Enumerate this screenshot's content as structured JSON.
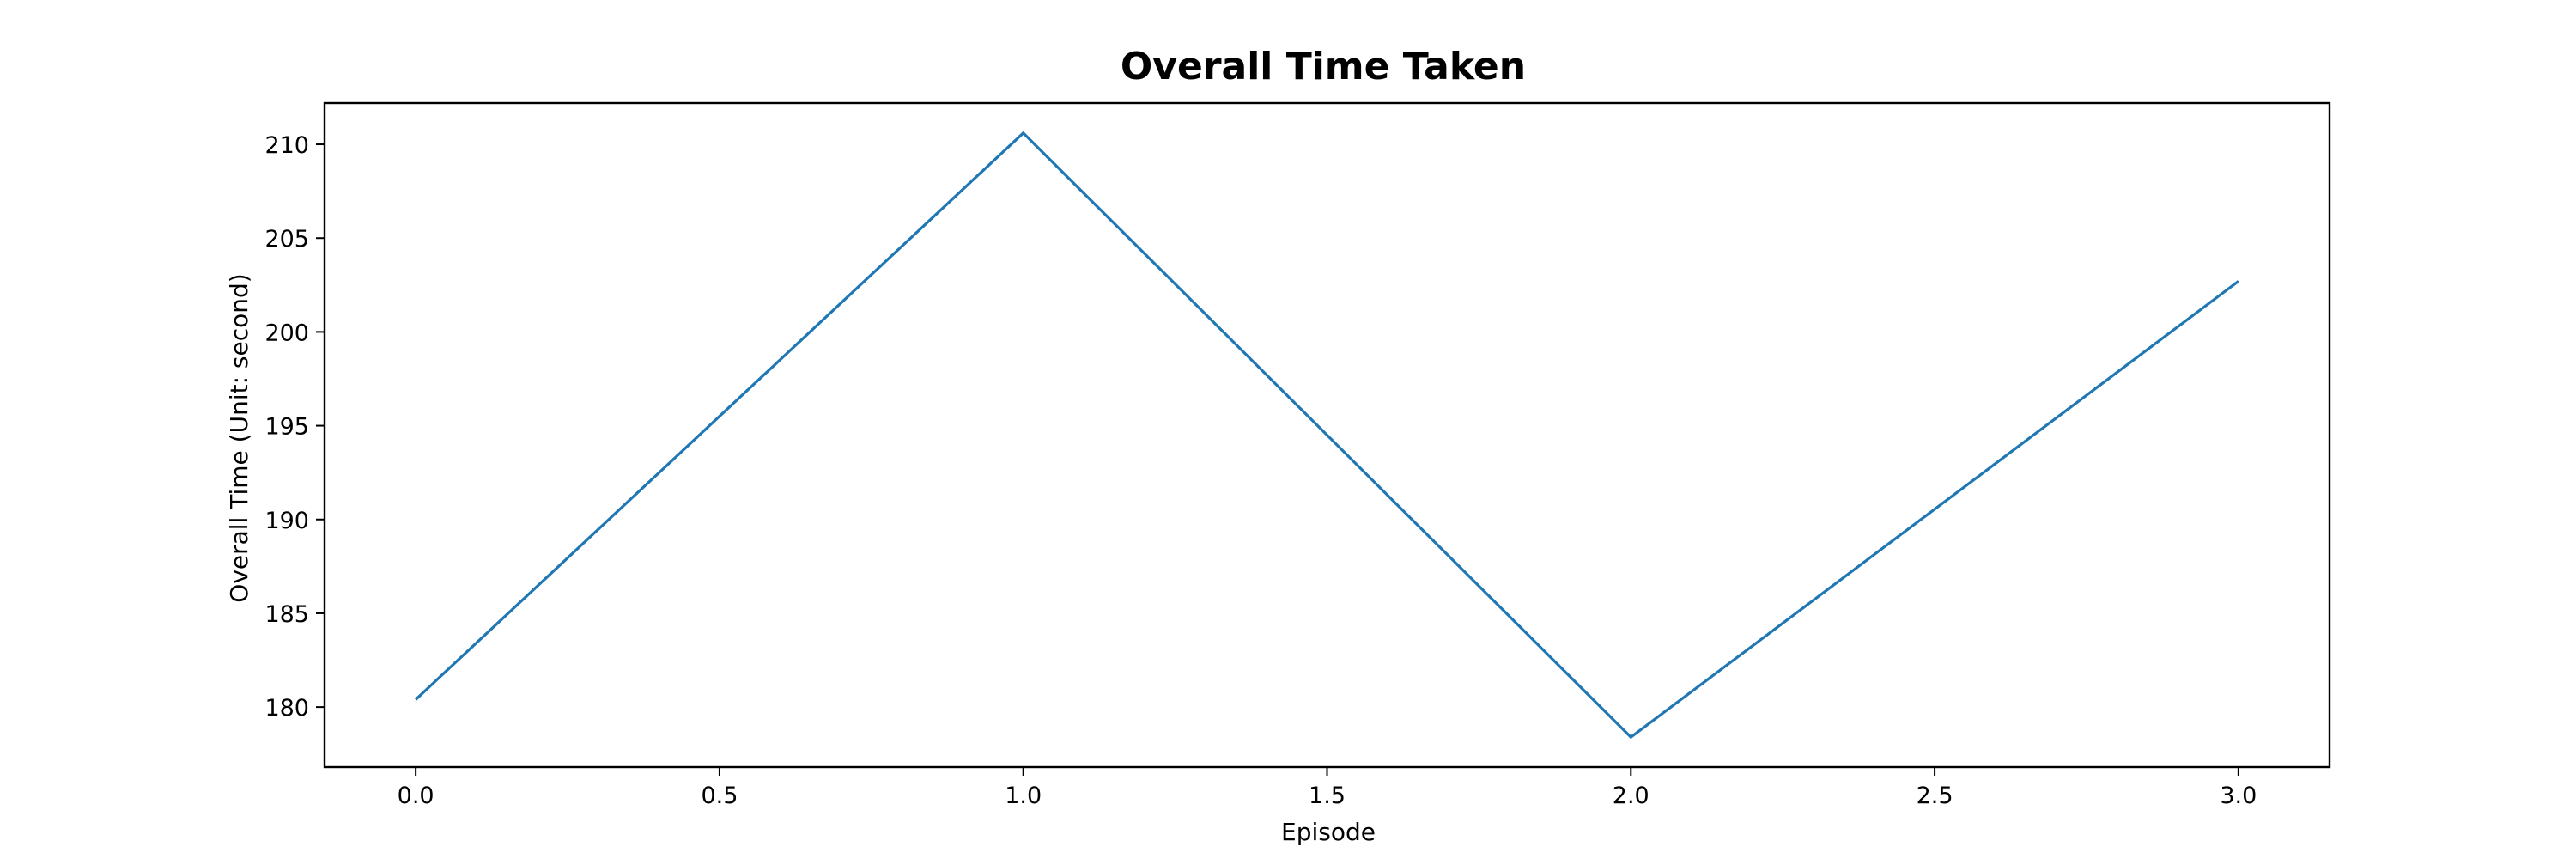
{
  "chart_data": {
    "type": "line",
    "title": "Overall Time Taken",
    "xlabel": "Episode",
    "ylabel": "Overall Time (Unit: second)",
    "x": [
      0,
      1,
      2,
      3
    ],
    "series": [
      {
        "values": [
          180.4,
          210.6,
          178.4,
          202.7
        ],
        "color": "#1f77b4"
      }
    ],
    "xlim": [
      -0.15,
      3.15
    ],
    "ylim": [
      176.8,
      212.2
    ],
    "xticks": [
      0.0,
      0.5,
      1.0,
      1.5,
      2.0,
      2.5,
      3.0
    ],
    "xtick_labels": [
      "0.0",
      "0.5",
      "1.0",
      "1.5",
      "2.0",
      "2.5",
      "3.0"
    ],
    "yticks": [
      180,
      185,
      190,
      195,
      200,
      205,
      210
    ],
    "ytick_labels": [
      "180",
      "185",
      "190",
      "195",
      "200",
      "205",
      "210"
    ],
    "grid": false,
    "legend": "none"
  }
}
